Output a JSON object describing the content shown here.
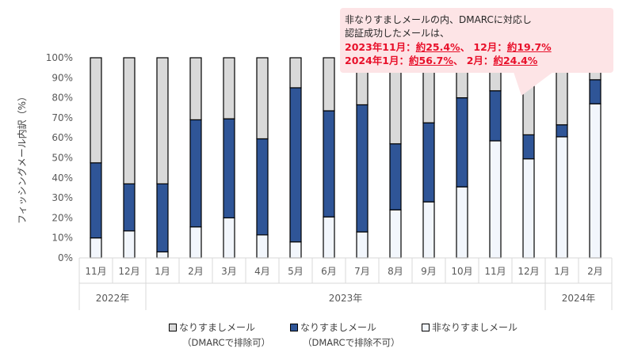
{
  "chart_data": {
    "type": "bar",
    "stacked": true,
    "ylabel": "フィッシングメール内訳（%）",
    "ylim": [
      0,
      100
    ],
    "yticks": [
      "0%",
      "10%",
      "20%",
      "30%",
      "40%",
      "50%",
      "60%",
      "70%",
      "80%",
      "90%",
      "100%"
    ],
    "categories": [
      "11月",
      "12月",
      "1月",
      "2月",
      "3月",
      "4月",
      "5月",
      "6月",
      "7月",
      "8月",
      "9月",
      "10月",
      "11月",
      "12月",
      "1月",
      "2月"
    ],
    "year_groups": [
      {
        "label": "2022年",
        "start": 0,
        "end": 1
      },
      {
        "label": "2023年",
        "start": 2,
        "end": 13
      },
      {
        "label": "2024年",
        "start": 14,
        "end": 15
      }
    ],
    "series": [
      {
        "name": "非なりすましメール",
        "color": "#f2f6fc",
        "values": [
          10,
          13.5,
          3,
          15.5,
          20,
          11.5,
          8,
          20.5,
          13,
          24,
          28,
          35.5,
          58.5,
          49.5,
          60.5,
          77
        ]
      },
      {
        "name": "なりすましメール（DMARCで排除不可）",
        "color": "#2f5597",
        "values": [
          37.5,
          23.5,
          34,
          53.5,
          49.5,
          48,
          77,
          53,
          63.5,
          33,
          39.5,
          44.5,
          25,
          12,
          6,
          12
        ]
      },
      {
        "name": "なりすましメール（DMARCで排除可）",
        "color": "#d9d9d9",
        "values": [
          52.5,
          63,
          63,
          31,
          30.5,
          40.5,
          15,
          26.5,
          23.5,
          43,
          32.5,
          20,
          16.5,
          38.5,
          33.5,
          11
        ]
      }
    ],
    "grid": false,
    "legend_position": "bottom"
  },
  "legend": [
    {
      "label": "なりすましメール",
      "sub": "（DMARCで排除可）",
      "color": "#d9d9d9"
    },
    {
      "label": "なりすましメール",
      "sub": "（DMARCで排除不可）",
      "color": "#2f5597"
    },
    {
      "label": "非なりすましメール",
      "sub": "",
      "color": "#f2f6fc"
    }
  ],
  "callout": {
    "line1": "非なりすましメールの内、DMARCに対応し",
    "line2": "認証成功したメールは、",
    "line3_prefix": "2023年11月：",
    "line3_v1": "約25.4%",
    "line3_mid": "、 12月：",
    "line3_v2": "約19.7%",
    "line4_prefix": "2024年1月：",
    "line4_v1": "約56.7%",
    "line4_mid": "、 2月：",
    "line4_v2": "約24.4%"
  }
}
